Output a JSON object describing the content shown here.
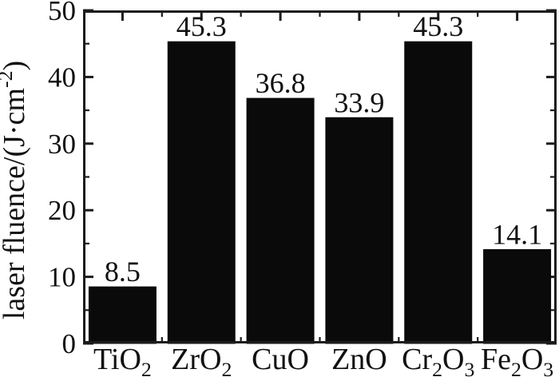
{
  "figure": {
    "background": "#ffffff",
    "kind": "scientific bar chart"
  },
  "chart_data": {
    "type": "bar",
    "title": "",
    "categories": [
      "TiO_{2}",
      "ZrO_{2}",
      "CuO",
      "ZnO",
      "Cr_{2}O_{3}",
      "Fe_{2}O_{3}"
    ],
    "values": [
      8.5,
      45.3,
      36.8,
      33.9,
      45.3,
      14.1
    ],
    "value_labels": [
      "8.5",
      "45.3",
      "36.8",
      "33.9",
      "45.3",
      "14.1"
    ],
    "xlabel": "",
    "ylabel": "laser fluence/(J·cm^{-2})",
    "ylim": [
      0,
      50
    ],
    "y_major_step": 10,
    "y_minor_step": 5,
    "y_tick_labels": [
      "0",
      "10",
      "20",
      "30",
      "40",
      "50"
    ],
    "grid": "off",
    "legend": "none",
    "axes_box": "full frame with mirrored inward ticks",
    "bar_color": "#0a0a0a",
    "axis_color": "#1c1c1c",
    "text_color": "#111111"
  }
}
